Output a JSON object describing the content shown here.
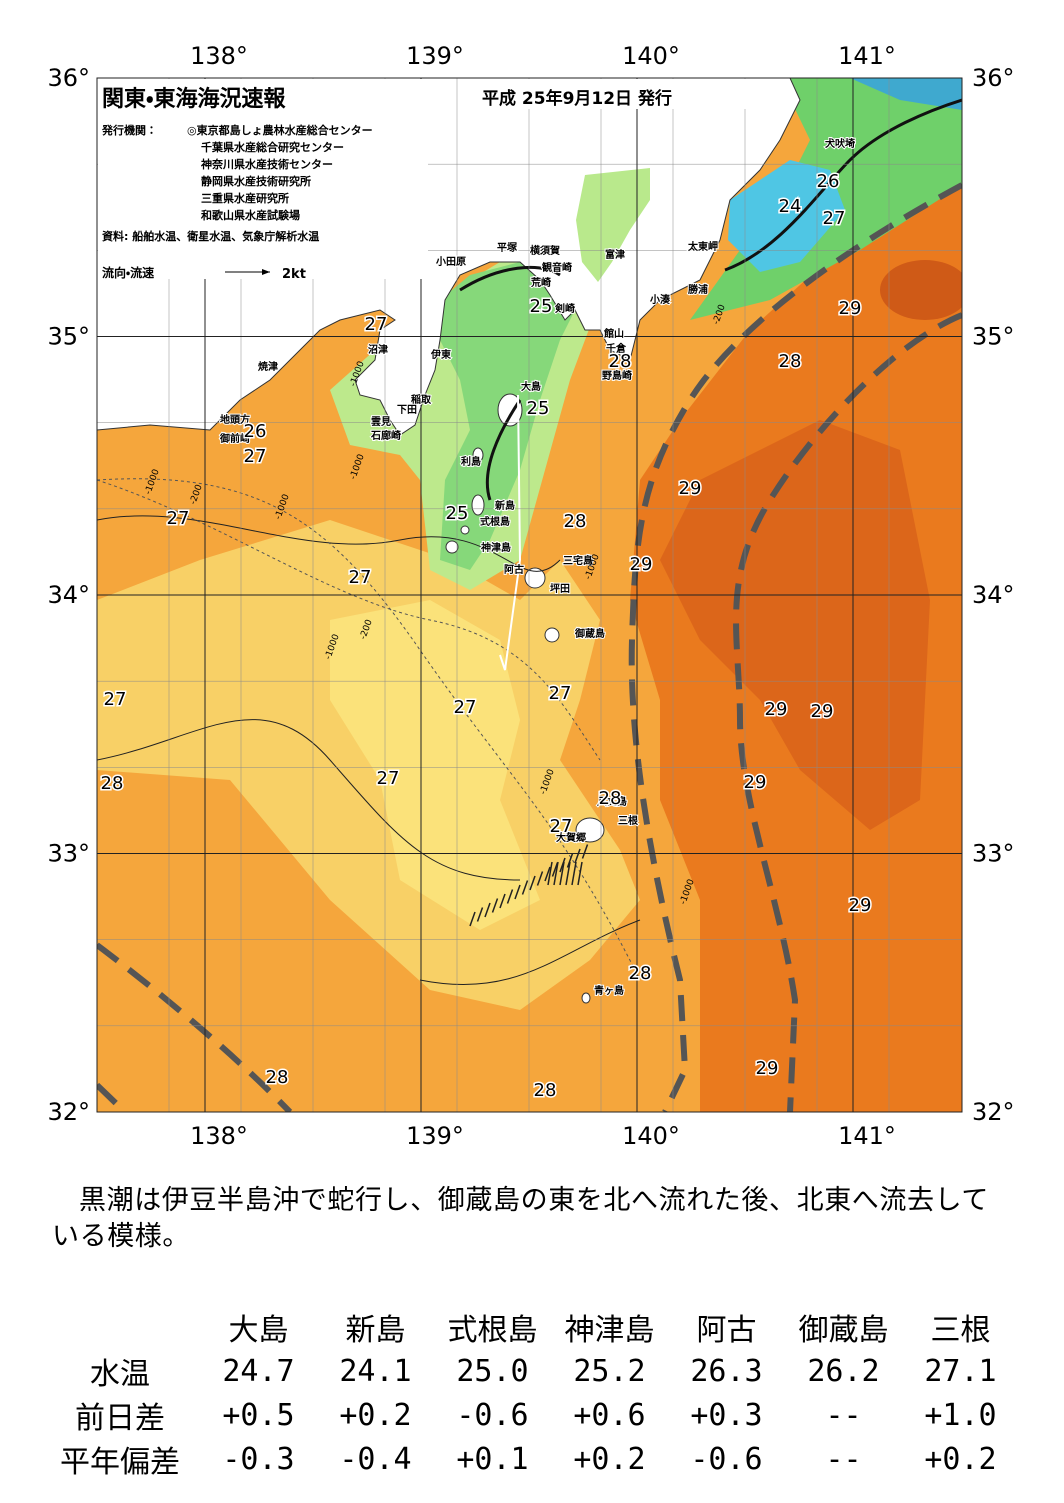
{
  "map": {
    "title": "関東・東海海況速報",
    "date": "平成 25年9月12日 発行",
    "publisher_label": "発行機関：",
    "publishers": [
      "◎東京都島しょ農林水産総合センター",
      "千葉県水産総合研究センター",
      "神奈川県水産技術センター",
      "静岡県水産技術研究所",
      "三重県水産研究所",
      "和歌山県水産試験場"
    ],
    "source": "資料: 船舶水温、衛星水温、気象庁解析水温",
    "legend_label": "流向・流速",
    "legend_scale": "2kt",
    "lat_labels": [
      "36°",
      "35°",
      "34°",
      "33°",
      "32°"
    ],
    "lon_labels": [
      "138°",
      "139°",
      "140°",
      "141°"
    ],
    "places": [
      "犬吠埼",
      "太東岬",
      "勝浦",
      "小湊",
      "富津",
      "館山",
      "千倉",
      "野島崎",
      "横須賀",
      "観音崎",
      "平塚",
      "荒崎",
      "剣崎",
      "小田原",
      "沼津",
      "伊東",
      "稲取",
      "下田",
      "雲見",
      "石廊崎",
      "焼津",
      "地頭方",
      "御前崎",
      "大島",
      "利島",
      "新島",
      "式根島",
      "神津島",
      "阿古",
      "三宅島",
      "坪田",
      "御蔵島",
      "八丈島",
      "三根",
      "大賀郷",
      "青ヶ島"
    ],
    "isotherm_labels": [
      26,
      24,
      27,
      29,
      28,
      27,
      28,
      25,
      25,
      26,
      27,
      29,
      27,
      25,
      28,
      29,
      27,
      27,
      27,
      27,
      29,
      29,
      28,
      27,
      29,
      28,
      27,
      29,
      28,
      29,
      28,
      28
    ],
    "depth_labels": [
      -1000,
      -200,
      -1000,
      -200,
      -1000,
      -1000,
      -1000,
      -1000,
      -1000,
      -1000,
      -200
    ]
  },
  "text": "黒潮は伊豆半島沖で蛇行し、御蔵島の東を北へ流れた後、北東へ流去している模様。",
  "table": {
    "header": [
      "大島",
      "新島",
      "式根島",
      "神津島",
      "阿古",
      "御蔵島",
      "三根"
    ],
    "rows": [
      {
        "label": "水温",
        "values": [
          "24.7",
          "24.1",
          "25.0",
          "25.2",
          "26.3",
          "26.2",
          "27.1"
        ]
      },
      {
        "label": "前日差",
        "values": [
          "+0.5",
          "+0.2",
          "-0.6",
          "+0.6",
          "+0.3",
          "--",
          "+1.0"
        ]
      },
      {
        "label": "平年偏差",
        "values": [
          "-0.3",
          "-0.4",
          "+0.1",
          "+0.2",
          "-0.6",
          "--",
          "+0.2"
        ]
      }
    ]
  }
}
